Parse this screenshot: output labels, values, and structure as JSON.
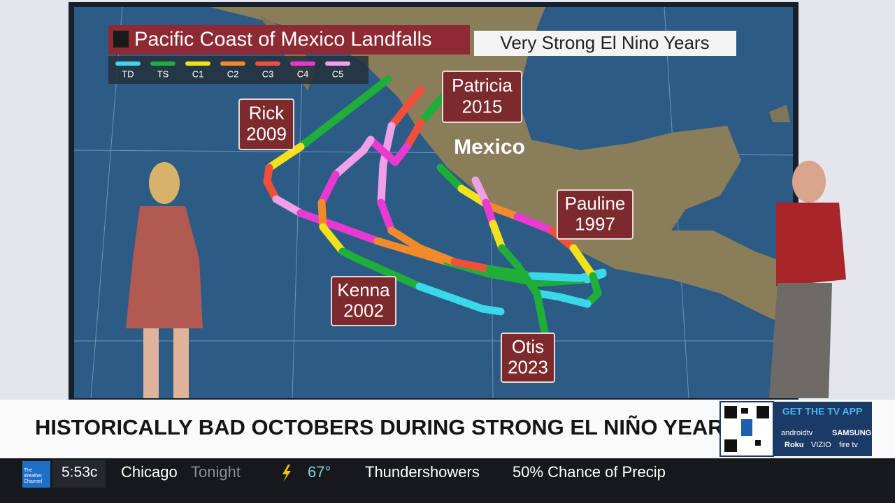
{
  "header": {
    "title": "Pacific Coast of Mexico Landfalls",
    "subtitle": "Very Strong El Nino Years"
  },
  "legend": {
    "items": [
      {
        "label": "TD",
        "color": "#3ad8e8"
      },
      {
        "label": "TS",
        "color": "#1fae3a"
      },
      {
        "label": "C1",
        "color": "#f2e21c"
      },
      {
        "label": "C2",
        "color": "#f08a2a"
      },
      {
        "label": "C3",
        "color": "#f0503a"
      },
      {
        "label": "C4",
        "color": "#e83ad0"
      },
      {
        "label": "C5",
        "color": "#f0a0e8"
      }
    ]
  },
  "map": {
    "country": "Mexico"
  },
  "storms": [
    {
      "name": "Rick",
      "year": "2009"
    },
    {
      "name": "Patricia",
      "year": "2015"
    },
    {
      "name": "Pauline",
      "year": "1997"
    },
    {
      "name": "Kenna",
      "year": "2002"
    },
    {
      "name": "Otis",
      "year": "2023"
    }
  ],
  "broadcast": {
    "headline": "HISTORICALLY BAD OCTOBERS DURING STRONG EL NIÑO YEARS"
  },
  "ticker": {
    "logo": "The Weather Channel",
    "time": "5:53c",
    "city": "Chicago",
    "period": "Tonight",
    "temperature": "67°",
    "condition": "Thundershowers",
    "precip": "50% Chance of Precip"
  },
  "promo": {
    "title": "GET THE TV APP",
    "brands": [
      "androidtv",
      "SAMSUNG",
      "Roku",
      "VIZIO",
      "fire tv"
    ]
  }
}
